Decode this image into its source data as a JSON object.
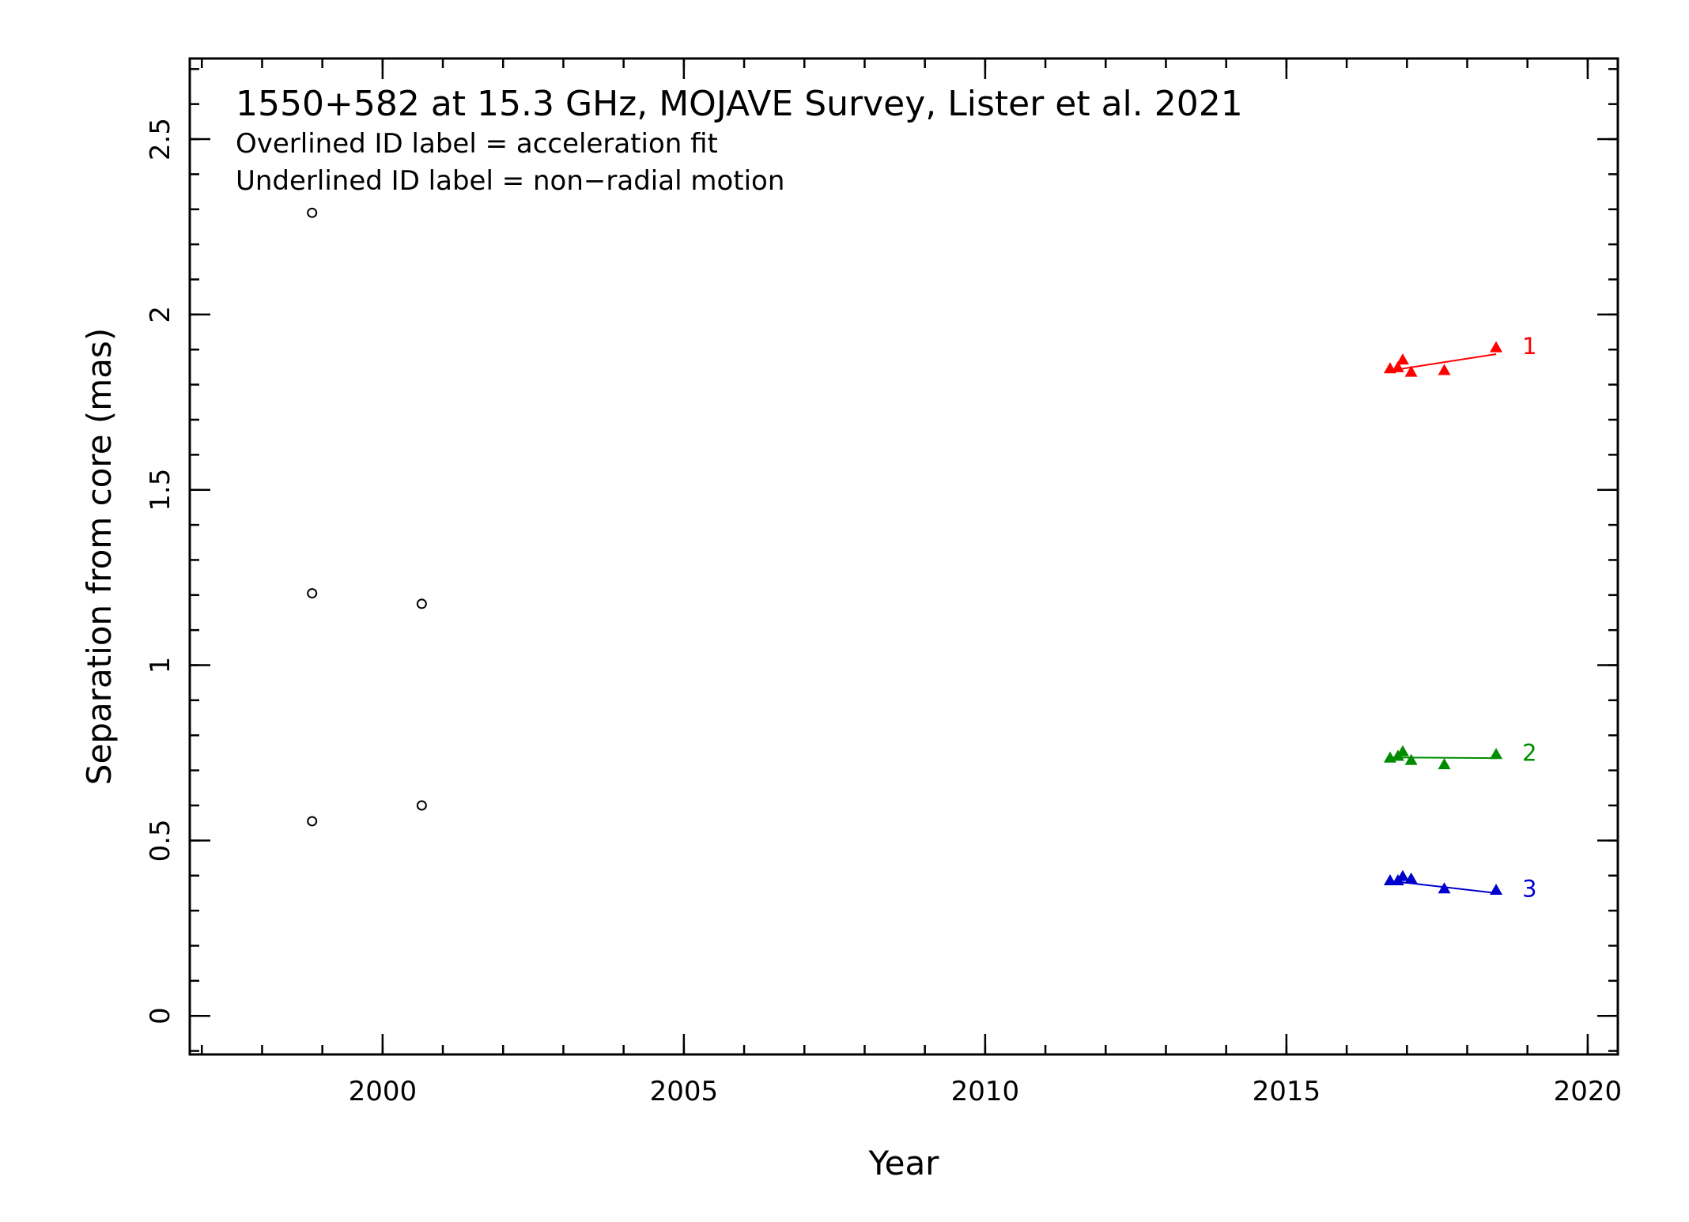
{
  "chart_data": {
    "type": "scatter",
    "title": "1550+582 at 15.3 GHz, MOJAVE Survey, Lister et al. 2021",
    "notes": [
      "Overlined ID label = acceleration fit",
      "Underlined ID label = non−radial motion"
    ],
    "xlabel": "Year",
    "ylabel": "Separation from core (mas)",
    "xlim": [
      1996.8,
      2020.5
    ],
    "ylim": [
      -0.11,
      2.73
    ],
    "x_ticks": [
      2000,
      2005,
      2010,
      2015,
      2020
    ],
    "x_tick_labels": [
      "2000",
      "2005",
      "2010",
      "2015",
      "2020"
    ],
    "y_ticks": [
      0,
      0.5,
      1,
      1.5,
      2,
      2.5
    ],
    "y_tick_labels": [
      "0",
      "0.5",
      "1",
      "1.5",
      "2",
      "2.5"
    ],
    "x_minor_step": 1,
    "y_minor_step": 0.1,
    "grid": false,
    "unassigned": {
      "marker": "open-circle",
      "color": "#000000",
      "points": [
        [
          1998.83,
          2.29
        ],
        [
          1998.83,
          1.205
        ],
        [
          1998.83,
          0.555
        ],
        [
          2000.65,
          1.175
        ],
        [
          2000.65,
          0.6
        ]
      ]
    },
    "series": [
      {
        "name": "1",
        "color": "#ff0000",
        "marker": "filled-triangle",
        "points": [
          [
            2016.72,
            1.845
          ],
          [
            2016.85,
            1.848
          ],
          [
            2016.93,
            1.87
          ],
          [
            2017.07,
            1.835
          ],
          [
            2017.62,
            1.84
          ],
          [
            2018.48,
            1.905
          ]
        ],
        "fit": [
          [
            2016.72,
            1.84
          ],
          [
            2018.48,
            1.887
          ]
        ]
      },
      {
        "name": "2",
        "color": "#008c00",
        "marker": "filled-triangle",
        "points": [
          [
            2016.72,
            0.735
          ],
          [
            2016.85,
            0.74
          ],
          [
            2016.93,
            0.753
          ],
          [
            2017.07,
            0.728
          ],
          [
            2017.62,
            0.716
          ],
          [
            2018.48,
            0.745
          ]
        ],
        "fit": [
          [
            2016.72,
            0.737
          ],
          [
            2018.48,
            0.735
          ]
        ]
      },
      {
        "name": "3",
        "color": "#0000cc",
        "marker": "filled-triangle",
        "points": [
          [
            2016.72,
            0.385
          ],
          [
            2016.85,
            0.385
          ],
          [
            2016.93,
            0.397
          ],
          [
            2017.07,
            0.39
          ],
          [
            2017.62,
            0.362
          ],
          [
            2018.48,
            0.358
          ]
        ],
        "fit": [
          [
            2016.72,
            0.385
          ],
          [
            2018.48,
            0.35
          ]
        ]
      }
    ]
  }
}
